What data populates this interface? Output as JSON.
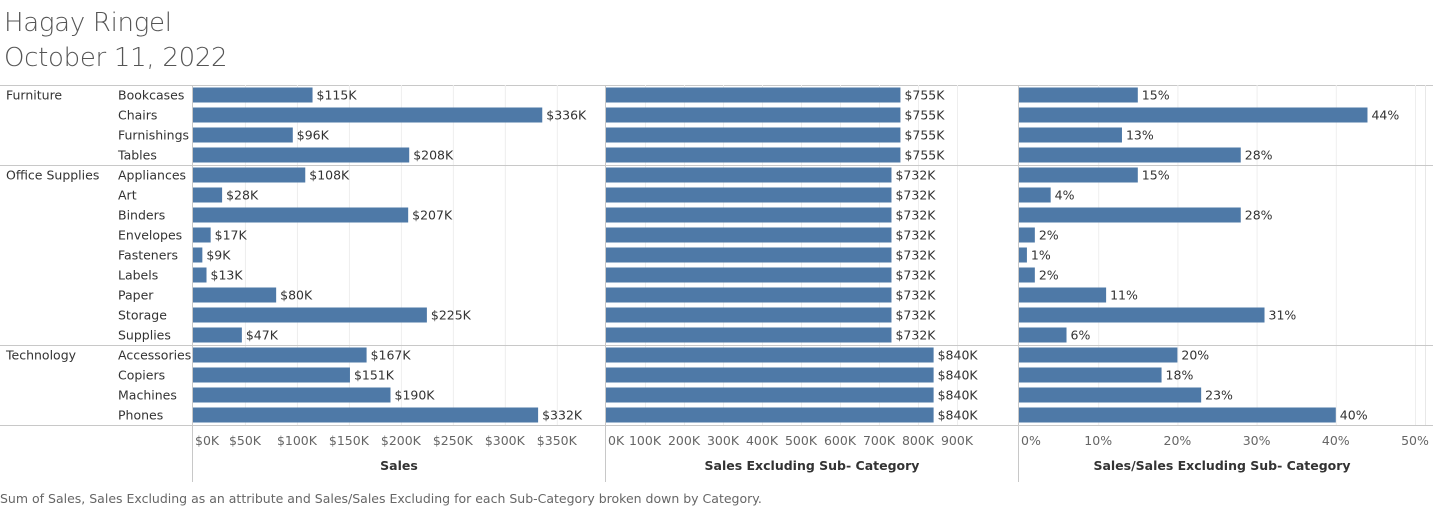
{
  "header": {
    "author": "Hagay Ringel",
    "date": "October 11, 2022"
  },
  "caption": "Sum of Sales, Sales Excluding as an attribute and Sales/Sales Excluding for each Sub-Category broken down by Category.",
  "colors": {
    "bar": "#4e79a7",
    "grid": "#e6e6e6",
    "divider": "#c8c8c8",
    "text": "#333333",
    "axis_text": "#666666"
  },
  "chart_data": {
    "type": "bar",
    "orientation": "horizontal",
    "rows": [
      {
        "category": "Furniture",
        "sub_category": "Bookcases"
      },
      {
        "category": "Furniture",
        "sub_category": "Chairs"
      },
      {
        "category": "Furniture",
        "sub_category": "Furnishings"
      },
      {
        "category": "Furniture",
        "sub_category": "Tables"
      },
      {
        "category": "Office Supplies",
        "sub_category": "Appliances"
      },
      {
        "category": "Office Supplies",
        "sub_category": "Art"
      },
      {
        "category": "Office Supplies",
        "sub_category": "Binders"
      },
      {
        "category": "Office Supplies",
        "sub_category": "Envelopes"
      },
      {
        "category": "Office Supplies",
        "sub_category": "Fasteners"
      },
      {
        "category": "Office Supplies",
        "sub_category": "Labels"
      },
      {
        "category": "Office Supplies",
        "sub_category": "Paper"
      },
      {
        "category": "Office Supplies",
        "sub_category": "Storage"
      },
      {
        "category": "Office Supplies",
        "sub_category": "Supplies"
      },
      {
        "category": "Technology",
        "sub_category": "Accessories"
      },
      {
        "category": "Technology",
        "sub_category": "Copiers"
      },
      {
        "category": "Technology",
        "sub_category": "Machines"
      },
      {
        "category": "Technology",
        "sub_category": "Phones"
      }
    ],
    "categories": [
      "Furniture",
      "Office Supplies",
      "Technology"
    ],
    "panels": [
      {
        "xlabel": "Sales",
        "xlim": [
          0,
          380
        ],
        "ticks": [
          0,
          50,
          100,
          150,
          200,
          250,
          300,
          350
        ],
        "tick_labels": [
          "$0K",
          "$50K",
          "$100K",
          "$150K",
          "$200K",
          "$250K",
          "$300K",
          "$350K"
        ],
        "values": [
          115,
          336,
          96,
          208,
          108,
          28,
          207,
          17,
          9,
          13,
          80,
          225,
          47,
          167,
          151,
          190,
          332
        ],
        "labels": [
          "$115K",
          "$336K",
          "$96K",
          "$208K",
          "$108K",
          "$28K",
          "$207K",
          "$17K",
          "$9K",
          "$13K",
          "$80K",
          "$225K",
          "$47K",
          "$167K",
          "$151K",
          "$190K",
          "$332K"
        ]
      },
      {
        "xlabel": "Sales Excluding Sub- Category",
        "xlim": [
          0,
          1000
        ],
        "ticks": [
          0,
          100,
          200,
          300,
          400,
          500,
          600,
          700,
          800,
          900
        ],
        "tick_labels": [
          "0K",
          "100K",
          "200K",
          "300K",
          "400K",
          "500K",
          "600K",
          "700K",
          "800K",
          "900K"
        ],
        "values": [
          755,
          755,
          755,
          755,
          732,
          732,
          732,
          732,
          732,
          732,
          732,
          732,
          732,
          840,
          840,
          840,
          840
        ],
        "labels": [
          "$755K",
          "$755K",
          "$755K",
          "$755K",
          "$732K",
          "$732K",
          "$732K",
          "$732K",
          "$732K",
          "$732K",
          "$732K",
          "$732K",
          "$732K",
          "$840K",
          "$840K",
          "$840K",
          "$840K"
        ]
      },
      {
        "xlabel": "Sales/Sales Excluding Sub- Category",
        "xlim": [
          0,
          50
        ],
        "ticks": [
          0,
          10,
          20,
          30,
          40,
          50
        ],
        "tick_labels": [
          "0%",
          "10%",
          "20%",
          "30%",
          "40%",
          "50%"
        ],
        "values": [
          15,
          44,
          13,
          28,
          15,
          4,
          28,
          2,
          1,
          2,
          11,
          31,
          6,
          20,
          18,
          23,
          40
        ],
        "labels": [
          "15%",
          "44%",
          "13%",
          "28%",
          "15%",
          "4%",
          "28%",
          "2%",
          "1%",
          "2%",
          "11%",
          "31%",
          "6%",
          "20%",
          "18%",
          "23%",
          "40%"
        ]
      }
    ],
    "grid": true
  }
}
